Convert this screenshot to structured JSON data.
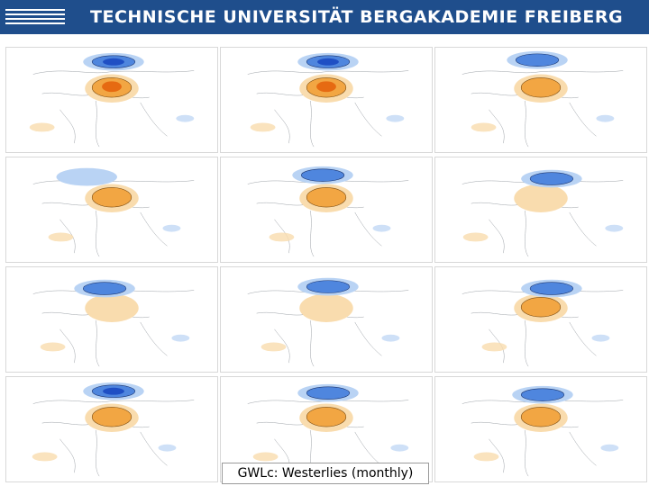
{
  "header": {
    "title": "TECHNISCHE UNIVERSITÄT BERGAKADEMIE FREIBERG",
    "color": "#1f4e8c"
  },
  "caption": "GWLc: Westerlies (monthly)",
  "colors": {
    "negative_strong": "#1f4fc4",
    "negative_mid": "#4f86de",
    "negative_light": "#b9d3f4",
    "positive_strong": "#e66a12",
    "positive_mid": "#f2a643",
    "positive_light": "#f9dcae"
  },
  "panels": [
    {
      "blue": "strong",
      "orange": "strong"
    },
    {
      "blue": "strong",
      "orange": "strong"
    },
    {
      "blue": "mid",
      "orange": "mid"
    },
    {
      "blue": "light",
      "orange": "mid"
    },
    {
      "blue": "mid",
      "orange": "mid"
    },
    {
      "blue": "mid",
      "orange": "light"
    },
    {
      "blue": "mid",
      "orange": "light"
    },
    {
      "blue": "mid",
      "orange": "light"
    },
    {
      "blue": "mid",
      "orange": "mid"
    },
    {
      "blue": "strong",
      "orange": "mid"
    },
    {
      "blue": "mid",
      "orange": "mid"
    },
    {
      "blue": "mid",
      "orange": "mid"
    }
  ]
}
